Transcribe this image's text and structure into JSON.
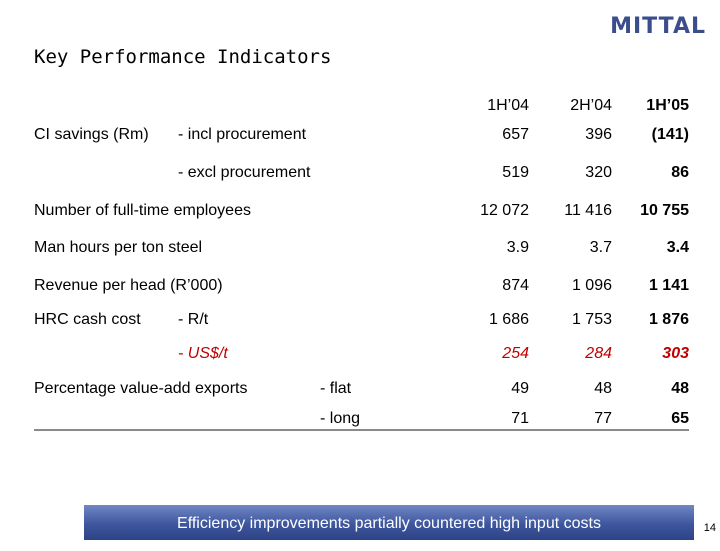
{
  "logo": "MITTAL",
  "title": "Key Performance Indicators",
  "columns": [
    "1H’04",
    "2H’04",
    "1H’05"
  ],
  "rows": [
    {
      "label": "CI savings (Rm)",
      "sub": "- incl procurement",
      "values": [
        "657",
        "396",
        "(141)"
      ]
    },
    {
      "label": "",
      "sub": "- excl procurement",
      "values": [
        "519",
        "320",
        "86"
      ]
    },
    {
      "label": "Number of full-time employees",
      "sub": "",
      "values": [
        "12 072",
        "11 416",
        "10 755"
      ]
    },
    {
      "label": "Man hours per ton steel",
      "sub": "",
      "values": [
        "3.9",
        "3.7",
        "3.4"
      ]
    },
    {
      "label": "Revenue per head (R’000)",
      "sub": "",
      "values": [
        "874",
        "1 096",
        "1 141"
      ]
    },
    {
      "label": "HRC cash cost",
      "sub": "- R/t",
      "values": [
        "1 686",
        "1 753",
        "1 876"
      ]
    },
    {
      "label": "",
      "sub": "- US$/t",
      "values": [
        "254",
        "284",
        "303"
      ]
    },
    {
      "label": "Percentage value-add exports",
      "sub": "- flat",
      "values": [
        "49",
        "48",
        "48"
      ]
    },
    {
      "label": "",
      "sub": "- long",
      "values": [
        "71",
        "77",
        "65"
      ]
    }
  ],
  "banner": "Efficiency improvements partially countered high input costs",
  "page_number": "14"
}
